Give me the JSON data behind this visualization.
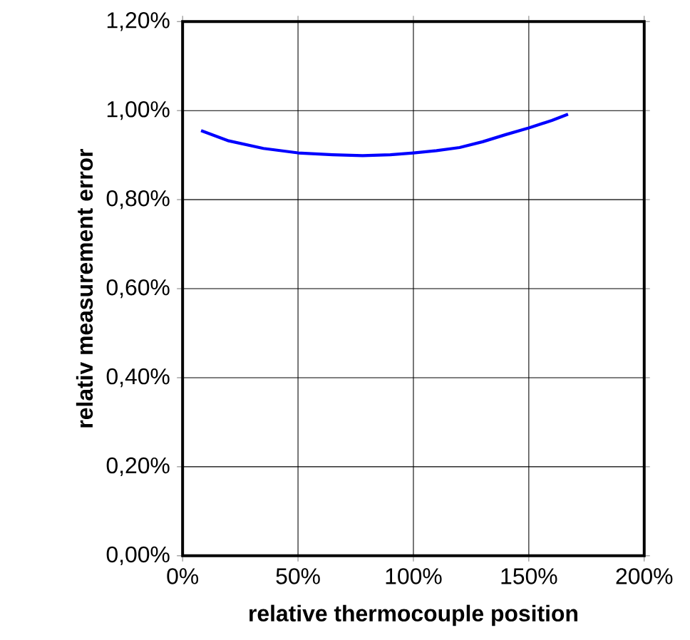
{
  "chart_data": {
    "type": "line",
    "xlabel": "relative thermocouple position",
    "ylabel": "relativ measurement error",
    "series": [
      {
        "color": "#0000ff",
        "x": [
          8,
          20,
          35,
          50,
          65,
          78,
          90,
          100,
          110,
          120,
          130,
          140,
          150,
          160,
          167
        ],
        "values": [
          0.955,
          0.932,
          0.915,
          0.905,
          0.901,
          0.899,
          0.901,
          0.905,
          0.91,
          0.917,
          0.93,
          0.946,
          0.961,
          0.978,
          0.992
        ]
      }
    ],
    "xlim": [
      0,
      200
    ],
    "xticks": [
      {
        "value": 0,
        "label": "0%"
      },
      {
        "value": 50,
        "label": "50%"
      },
      {
        "value": 100,
        "label": "100%"
      },
      {
        "value": 150,
        "label": "150%"
      },
      {
        "value": 200,
        "label": "200%"
      }
    ],
    "ylim": [
      0,
      1.2
    ],
    "yticks": [
      {
        "value": 0,
        "label": "0,00%"
      },
      {
        "value": 0.2,
        "label": "0,20%"
      },
      {
        "value": 0.4,
        "label": "0,40%"
      },
      {
        "value": 0.6,
        "label": "0,60%"
      },
      {
        "value": 0.8,
        "label": "0,80%"
      },
      {
        "value": 1.0,
        "label": "1,00%"
      },
      {
        "value": 1.2,
        "label": "1,20%"
      }
    ],
    "grid": true,
    "marker": "none",
    "line_style": "solid"
  }
}
